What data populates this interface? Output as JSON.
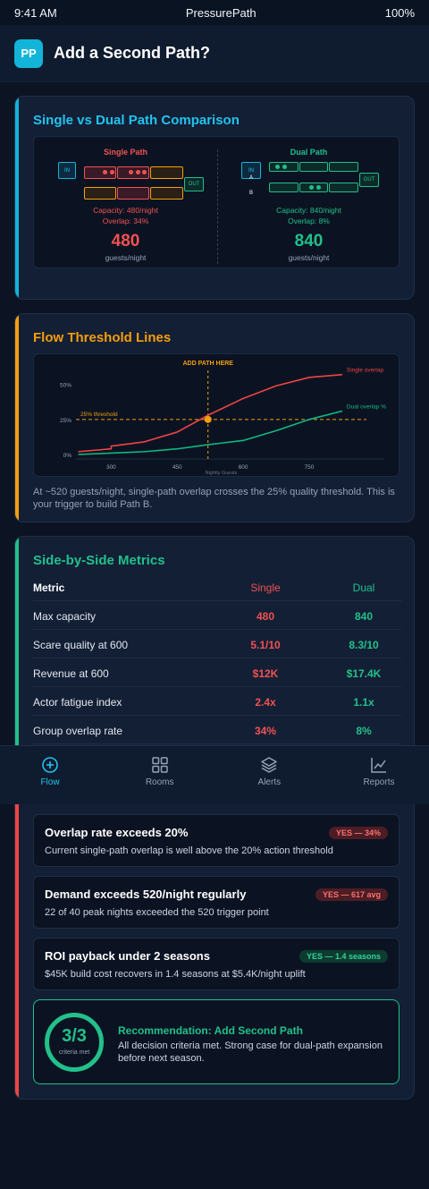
{
  "status_bar": {
    "time": "9:41 AM",
    "app": "PressurePath",
    "battery": "100%"
  },
  "header": {
    "logo": "PP",
    "title": "Add a Second Path?"
  },
  "comparison": {
    "title": "Single vs Dual Path Comparison",
    "accent": "#12b4d8",
    "single": {
      "heading": "Single Path",
      "in_label": "IN",
      "out_label": "OUT",
      "capacity": "Capacity: 480/night",
      "overlap": "Overlap: 34%",
      "value": "480",
      "unit": "guests/night",
      "color": "#f05252"
    },
    "dual": {
      "heading": "Dual Path",
      "in_label": "IN",
      "a_label": "A",
      "b_label": "B",
      "out_label": "OUT",
      "capacity": "Capacity: 840/night",
      "overlap": "Overlap: 8%",
      "value": "840",
      "unit": "guests/night",
      "color": "#22c08a"
    }
  },
  "threshold": {
    "title": "Flow Threshold Lines",
    "accent": "#f59e0b",
    "caption": "At ~520 guests/night, single-path overlap crosses the 25% quality threshold. This is your trigger to build Path B."
  },
  "chart_data": {
    "type": "line",
    "title": "",
    "xlabel": "Nightly Guests",
    "ylabel": "",
    "xlim": [
      220,
      880
    ],
    "ylim": [
      0,
      0.6
    ],
    "x_ticks": [
      300,
      450,
      600,
      750
    ],
    "y_ticks": [
      {
        "value": 0,
        "label": "0%"
      },
      {
        "value": 0.25,
        "label": "25%"
      },
      {
        "value": 0.5,
        "label": "50%"
      }
    ],
    "series": [
      {
        "name": "Single overlap",
        "color": "#ef4444",
        "x": [
          225,
          300,
          300,
          375,
          450,
          520,
          600,
          675,
          750,
          825
        ],
        "y": [
          0.02,
          0.04,
          0.06,
          0.09,
          0.16,
          0.28,
          0.4,
          0.49,
          0.55,
          0.57
        ]
      },
      {
        "name": "Dual overlap %",
        "color": "#10b981",
        "x": [
          225,
          300,
          375,
          450,
          520,
          600,
          675,
          750,
          825
        ],
        "y": [
          0.0,
          0.01,
          0.02,
          0.04,
          0.07,
          0.1,
          0.17,
          0.25,
          0.31
        ]
      }
    ],
    "threshold": {
      "value": 0.25,
      "label": "25% threshold",
      "color": "#f59e0b"
    },
    "marker": {
      "x": 520,
      "label": "ADD PATH HERE",
      "color": "#f59e0b"
    },
    "grid": false,
    "legend": "inline right"
  },
  "metrics": {
    "title": "Side-by-Side Metrics",
    "accent": "#22c08a",
    "columns": [
      "Metric",
      "Single",
      "Dual"
    ],
    "rows": [
      [
        "Max capacity",
        "480",
        "840"
      ],
      [
        "Scare quality at 600",
        "5.1/10",
        "8.3/10"
      ],
      [
        "Revenue at 600",
        "$12K",
        "$17.4K"
      ],
      [
        "Actor fatigue index",
        "2.4x",
        "1.1x"
      ],
      [
        "Group overlap rate",
        "34%",
        "8%"
      ]
    ]
  },
  "nav": [
    {
      "label": "Flow",
      "icon": "target-icon",
      "active": true
    },
    {
      "label": "Rooms",
      "icon": "grid-icon",
      "active": false
    },
    {
      "label": "Alerts",
      "icon": "layers-icon",
      "active": false
    },
    {
      "label": "Reports",
      "icon": "chart-icon",
      "active": false
    }
  ],
  "decision": {
    "accent": "#ef4444",
    "criteria": [
      {
        "title": "Overlap rate exceeds 20%",
        "badge": "YES — 34%",
        "desc": "Current single-path overlap is well above the 20% action threshold",
        "tone": "red"
      },
      {
        "title": "Demand exceeds 520/night regularly",
        "badge": "YES — 617 avg",
        "desc": "22 of 40 peak nights exceeded the 520 trigger point",
        "tone": "red"
      },
      {
        "title": "ROI payback under 2 seasons",
        "badge": "YES — 1.4 seasons",
        "desc": "$45K build cost recovers in 1.4 seasons at $5.4K/night uplift",
        "tone": "green"
      }
    ],
    "recommendation": {
      "score": "3/3",
      "score_label": "criteria met",
      "title": "Recommendation: Add Second Path",
      "desc": "All decision criteria met. Strong case for dual-path expansion before next season."
    }
  }
}
